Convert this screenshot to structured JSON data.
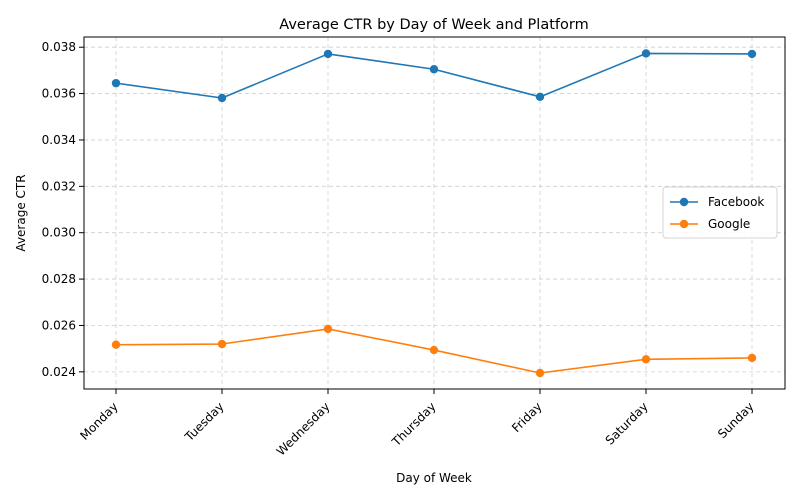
{
  "chart_data": {
    "type": "line",
    "title": "Average CTR by Day of Week and Platform",
    "xlabel": "Day of Week",
    "ylabel": "Average CTR",
    "categories": [
      "Monday",
      "Tuesday",
      "Wednesday",
      "Thursday",
      "Friday",
      "Saturday",
      "Sunday"
    ],
    "series": [
      {
        "name": "Facebook",
        "color": "#1f77b4",
        "values": [
          0.03645,
          0.03581,
          0.03771,
          0.03705,
          0.03586,
          0.03773,
          0.03771
        ]
      },
      {
        "name": "Google",
        "color": "#ff7f0e",
        "values": [
          0.02517,
          0.0252,
          0.02585,
          0.02494,
          0.02395,
          0.02454,
          0.0246
        ]
      }
    ],
    "ylim": [
      0.02326,
      0.03844
    ],
    "yticks": [
      0.024,
      0.026,
      0.028,
      0.03,
      0.032,
      0.034,
      0.036,
      0.038
    ],
    "ytick_labels": [
      "0.024",
      "0.026",
      "0.028",
      "0.030",
      "0.032",
      "0.034",
      "0.036",
      "0.038"
    ],
    "grid": true,
    "legend_position": "center-right"
  }
}
